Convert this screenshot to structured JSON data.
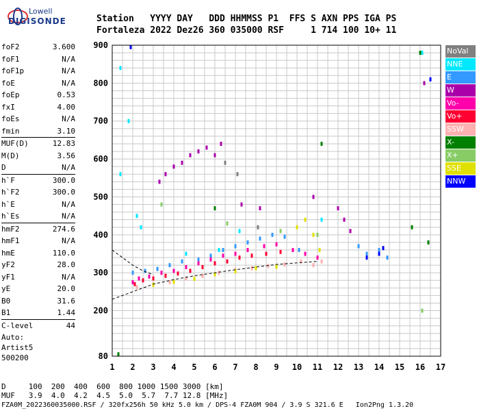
{
  "logo": {
    "line1": "Lowell",
    "line2": "DIGISONDE"
  },
  "header": {
    "line1": "Station   YYYY DAY   DDD HHMMSS P1  FFS S AXN PPS IGA PS",
    "line2": "Fortaleza 2022 Dez26 360 035000 RSF     1 714 100 10+ 11"
  },
  "params": [
    {
      "k": "foF2",
      "v": "3.600"
    },
    {
      "k": "foF1",
      "v": "N/A"
    },
    {
      "k": "foF1p",
      "v": "N/A"
    },
    {
      "k": "foE",
      "v": "N/A"
    },
    {
      "k": "foEp",
      "v": "0.53"
    },
    {
      "k": "fxI",
      "v": "4.00"
    },
    {
      "k": "foEs",
      "v": "N/A"
    },
    {
      "k": "fmin",
      "v": "3.10"
    },
    {
      "k": "MUF(D)",
      "v": "12.83"
    },
    {
      "k": "M(D)",
      "v": "3.56"
    },
    {
      "k": "D",
      "v": "N/A"
    },
    {
      "k": "h`F",
      "v": "300.0"
    },
    {
      "k": "h`F2",
      "v": "300.0"
    },
    {
      "k": "h`E",
      "v": "N/A"
    },
    {
      "k": "h`Es",
      "v": "N/A"
    },
    {
      "k": "hmF2",
      "v": "274.6"
    },
    {
      "k": "hmF1",
      "v": "N/A"
    },
    {
      "k": "hmE",
      "v": "110.0"
    },
    {
      "k": "yF2",
      "v": "28.0"
    },
    {
      "k": "yF1",
      "v": "N/A"
    },
    {
      "k": "yE",
      "v": "20.0"
    },
    {
      "k": "B0",
      "v": "31.6"
    },
    {
      "k": "B1",
      "v": "1.44"
    },
    {
      "k": "C-level",
      "v": "44"
    }
  ],
  "autoscale": {
    "l1": "Auto:",
    "l2": "Artist5",
    "l3": "500200"
  },
  "legend": [
    {
      "label": "NoVal",
      "color": "#808080"
    },
    {
      "label": "NNE",
      "color": "#00e8ff"
    },
    {
      "label": "E",
      "color": "#3399ff"
    },
    {
      "label": "W",
      "color": "#aa00aa"
    },
    {
      "label": "Vo-",
      "color": "#ff00aa"
    },
    {
      "label": "Vo+",
      "color": "#ff0033"
    },
    {
      "label": "SSW",
      "color": "#ffb0b0"
    },
    {
      "label": "X-",
      "color": "#008000"
    },
    {
      "label": "X+",
      "color": "#88cc66"
    },
    {
      "label": "SSE",
      "color": "#e0e000"
    },
    {
      "label": "NNW",
      "color": "#0000ff"
    }
  ],
  "footer": {
    "line1": "D     100  200  400  600  800 1000 1500 3000 [km]",
    "line2": "MUF   3.9  4.0  4.2  4.5  5.0  5.7  7.7 12.8 [MHz]",
    "line3": "FZA0M_2022360035000.RSF / 320fx256h 50 kHz 5.0 km / DPS-4 FZA0M 904 / 3.9 S 321.6 E   Ion2Png 1.3.20"
  },
  "chart_data": {
    "type": "scatter",
    "xlim": [
      1,
      17
    ],
    "ylim": [
      80,
      900
    ],
    "xticks": [
      "1",
      "2",
      "3",
      "4",
      "5",
      "6",
      "7",
      "8",
      "9",
      "10",
      "11",
      "12",
      "13",
      "14",
      "15",
      "16",
      "17"
    ],
    "yticks": [
      "80",
      "200",
      "300",
      "400",
      "500",
      "600",
      "700",
      "800",
      "900"
    ],
    "grid": true,
    "legend_position": "right",
    "series": [
      {
        "name": "NNE",
        "points": [
          [
            1.4,
            840
          ],
          [
            1.4,
            560
          ],
          [
            1.8,
            700
          ],
          [
            2.2,
            450
          ],
          [
            2.4,
            420
          ],
          [
            4.6,
            350
          ],
          [
            6.2,
            360
          ],
          [
            7.2,
            410
          ],
          [
            11.2,
            440
          ],
          [
            16.1,
            880
          ]
        ]
      },
      {
        "name": "E",
        "points": [
          [
            2.0,
            300
          ],
          [
            2.6,
            305
          ],
          [
            3.2,
            310
          ],
          [
            3.8,
            320
          ],
          [
            4.4,
            330
          ],
          [
            5.2,
            335
          ],
          [
            5.8,
            345
          ],
          [
            6.4,
            360
          ],
          [
            7.0,
            370
          ],
          [
            7.6,
            380
          ],
          [
            8.2,
            390
          ],
          [
            8.8,
            400
          ],
          [
            9.4,
            395
          ],
          [
            10.1,
            360
          ],
          [
            13.0,
            370
          ],
          [
            13.4,
            350
          ],
          [
            14.0,
            360
          ],
          [
            14.4,
            340
          ]
        ]
      },
      {
        "name": "W",
        "points": [
          [
            3.3,
            540
          ],
          [
            3.6,
            560
          ],
          [
            4.0,
            580
          ],
          [
            4.4,
            590
          ],
          [
            4.8,
            610
          ],
          [
            5.2,
            620
          ],
          [
            5.6,
            630
          ],
          [
            6.0,
            610
          ],
          [
            6.3,
            640
          ],
          [
            7.3,
            480
          ],
          [
            8.2,
            470
          ],
          [
            10.8,
            500
          ],
          [
            12.0,
            470
          ],
          [
            12.3,
            440
          ],
          [
            12.6,
            410
          ],
          [
            16.2,
            800
          ]
        ]
      },
      {
        "name": "Vo-",
        "points": [
          [
            2.0,
            275
          ],
          [
            2.3,
            285
          ],
          [
            2.8,
            290
          ],
          [
            3.4,
            300
          ],
          [
            4.0,
            305
          ],
          [
            4.6,
            315
          ],
          [
            5.2,
            325
          ],
          [
            5.8,
            335
          ],
          [
            6.4,
            345
          ],
          [
            7.0,
            350
          ],
          [
            7.6,
            360
          ],
          [
            8.4,
            370
          ],
          [
            9.0,
            375
          ],
          [
            9.8,
            360
          ],
          [
            10.4,
            350
          ],
          [
            11.0,
            340
          ]
        ]
      },
      {
        "name": "Vo+",
        "points": [
          [
            2.1,
            270
          ],
          [
            2.5,
            280
          ],
          [
            3.0,
            285
          ],
          [
            3.6,
            292
          ],
          [
            4.2,
            298
          ],
          [
            4.8,
            305
          ],
          [
            5.4,
            315
          ],
          [
            6.0,
            325
          ],
          [
            6.6,
            330
          ],
          [
            7.2,
            340
          ],
          [
            7.8,
            345
          ],
          [
            8.5,
            350
          ],
          [
            9.2,
            355
          ]
        ]
      },
      {
        "name": "SSW",
        "points": [
          [
            2.2,
            262
          ],
          [
            3.0,
            270
          ],
          [
            3.8,
            275
          ],
          [
            4.6,
            285
          ],
          [
            5.4,
            292
          ],
          [
            6.2,
            300
          ],
          [
            7.0,
            308
          ],
          [
            7.8,
            312
          ],
          [
            8.6,
            318
          ],
          [
            9.4,
            322
          ],
          [
            10.2,
            330
          ],
          [
            10.8,
            320
          ],
          [
            11.2,
            330
          ]
        ]
      },
      {
        "name": "X-",
        "points": [
          [
            1.3,
            85
          ],
          [
            6.0,
            470
          ],
          [
            11.2,
            640
          ],
          [
            15.6,
            420
          ],
          [
            16.0,
            880
          ],
          [
            16.4,
            380
          ]
        ]
      },
      {
        "name": "X+",
        "points": [
          [
            3.4,
            480
          ],
          [
            6.6,
            430
          ],
          [
            9.2,
            410
          ],
          [
            11.0,
            400
          ],
          [
            16.1,
            200
          ]
        ]
      },
      {
        "name": "SSE",
        "points": [
          [
            3.0,
            268
          ],
          [
            4.0,
            276
          ],
          [
            5.0,
            284
          ],
          [
            6.0,
            296
          ],
          [
            7.0,
            304
          ],
          [
            8.0,
            312
          ],
          [
            9.0,
            316
          ],
          [
            10.0,
            420
          ],
          [
            10.4,
            440
          ],
          [
            10.8,
            400
          ],
          [
            11.1,
            360
          ]
        ]
      },
      {
        "name": "NNW",
        "points": [
          [
            1.9,
            895
          ],
          [
            13.4,
            340
          ],
          [
            14.0,
            350
          ],
          [
            14.2,
            365
          ],
          [
            16.5,
            810
          ]
        ]
      },
      {
        "name": "NoVal",
        "points": [
          [
            6.5,
            590
          ],
          [
            7.1,
            560
          ],
          [
            8.1,
            420
          ]
        ]
      }
    ],
    "dashed_curves": [
      [
        [
          1.0,
          360
        ],
        [
          1.5,
          340
        ],
        [
          2.0,
          320
        ],
        [
          2.5,
          305
        ],
        [
          3.0,
          295
        ]
      ],
      [
        [
          1.0,
          230
        ],
        [
          2.0,
          250
        ],
        [
          3.0,
          270
        ],
        [
          4.0,
          282
        ],
        [
          5.0,
          292
        ],
        [
          6.0,
          300
        ],
        [
          7.0,
          308
        ],
        [
          8.0,
          315
        ],
        [
          9.0,
          322
        ],
        [
          10.0,
          326
        ],
        [
          11.0,
          330
        ]
      ]
    ]
  }
}
